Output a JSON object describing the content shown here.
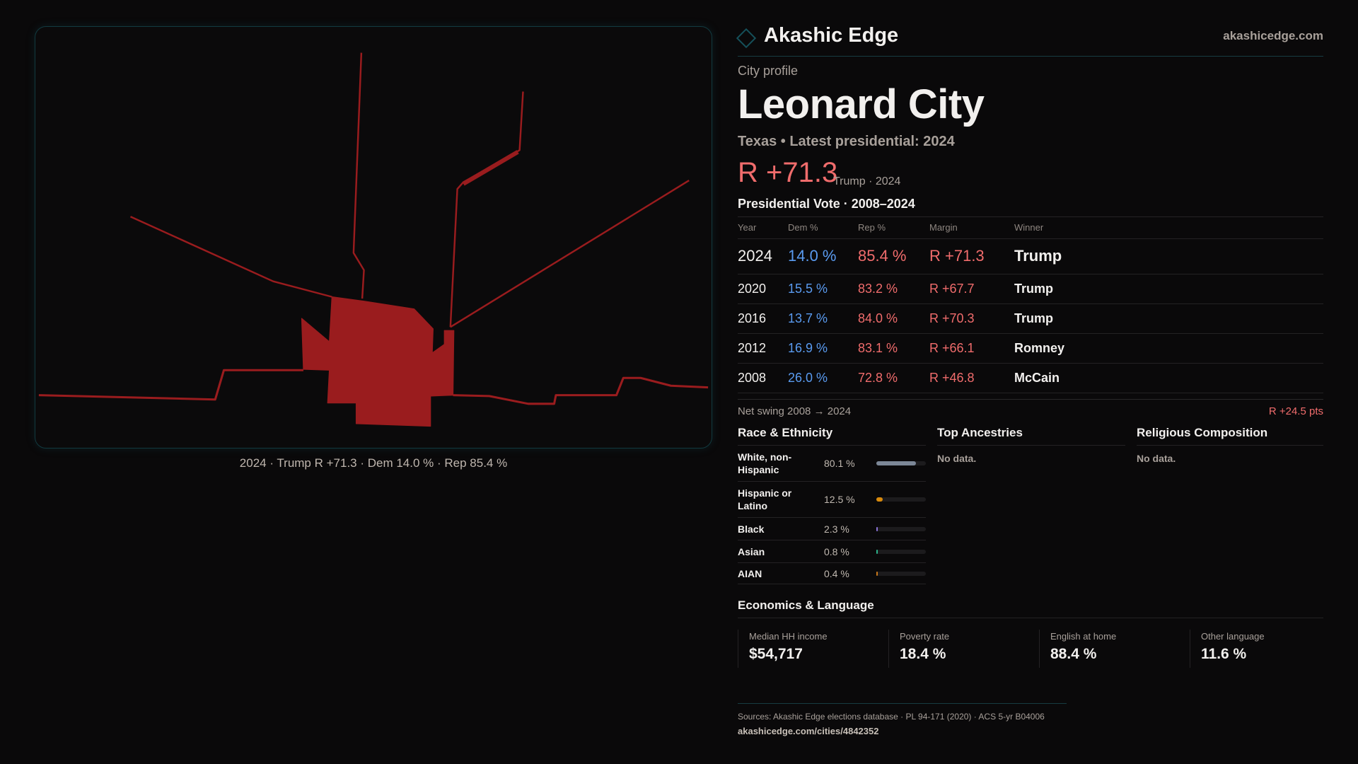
{
  "header": {
    "brand": "Akashic Edge",
    "site": "akashicedge.com"
  },
  "profile": {
    "kicker": "City profile",
    "name": "Leonard City",
    "subtitle": "Texas • Latest presidential: 2024",
    "margin": "R +71.3",
    "margin_note": "Trump · 2024"
  },
  "map": {
    "caption": "2024 · Trump R +71.3 · Dem 14.0 % · Rep 85.4 %",
    "fill_color": "#9a1c1e"
  },
  "votes": {
    "title": "Presidential Vote · 2008–2024",
    "columns": [
      "Year",
      "Dem %",
      "Rep %",
      "Margin",
      "Winner"
    ],
    "rows": [
      {
        "year": "2024",
        "dem": "14.0 %",
        "rep": "85.4 %",
        "margin": "R +71.3",
        "winner": "Trump"
      },
      {
        "year": "2020",
        "dem": "15.5 %",
        "rep": "83.2 %",
        "margin": "R +67.7",
        "winner": "Trump"
      },
      {
        "year": "2016",
        "dem": "13.7 %",
        "rep": "84.0 %",
        "margin": "R +70.3",
        "winner": "Trump"
      },
      {
        "year": "2012",
        "dem": "16.9 %",
        "rep": "83.1 %",
        "margin": "R +66.1",
        "winner": "Romney"
      },
      {
        "year": "2008",
        "dem": "26.0 %",
        "rep": "72.8 %",
        "margin": "R +46.8",
        "winner": "McCain"
      }
    ],
    "swing_label": "Net swing 2008 → 2024",
    "swing_value": "R +24.5 pts"
  },
  "race": {
    "title": "Race & Ethnicity",
    "rows": [
      {
        "label": "White, non-Hispanic",
        "value": "80.1 %",
        "pct": 80.1,
        "color": "#7c8797"
      },
      {
        "label": "Hispanic or Latino",
        "value": "12.5 %",
        "pct": 12.5,
        "color": "#d98a0c"
      },
      {
        "label": "Black",
        "value": "2.3 %",
        "pct": 2.3,
        "color": "#8a72d8"
      },
      {
        "label": "Asian",
        "value": "0.8 %",
        "pct": 0.8,
        "color": "#2bb38a"
      },
      {
        "label": "AIAN",
        "value": "0.4 %",
        "pct": 0.4,
        "color": "#c9781a"
      }
    ]
  },
  "ancestries": {
    "title": "Top Ancestries",
    "empty": "No data."
  },
  "religion": {
    "title": "Religious Composition",
    "empty": "No data."
  },
  "economics": {
    "title": "Economics & Language",
    "stats": [
      {
        "label": "Median HH income",
        "value": "$54,717"
      },
      {
        "label": "Poverty rate",
        "value": "18.4 %"
      },
      {
        "label": "English at home",
        "value": "88.4 %"
      },
      {
        "label": "Other language",
        "value": "11.6 %"
      }
    ]
  },
  "footer": {
    "sources": "Sources: Akashic Edge elections database · PL 94-171 (2020) · ACS 5-yr B04006",
    "url": "akashicedge.com/cities/4842352"
  }
}
